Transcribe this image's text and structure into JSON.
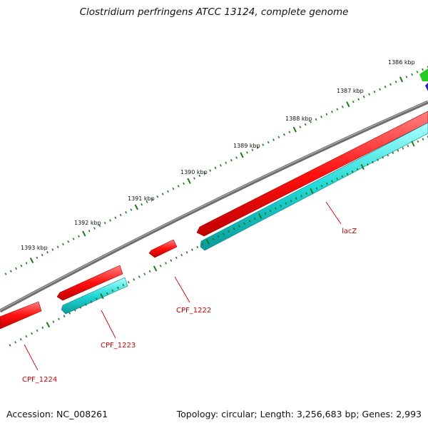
{
  "title": "Clostridium perfringens ATCC 13124, complete genome",
  "footer": {
    "accession": "Accession: NC_008261",
    "summary": "Topology: circular; Length: 3,256,683 bp; Genes: 2,993"
  },
  "ruler": {
    "ticks": [
      "1386 kbp",
      "1387 kbp",
      "1388 kbp",
      "1389 kbp",
      "1390 kbp",
      "1391 kbp",
      "1392 kbp",
      "1393 kbp"
    ]
  },
  "genes": [
    {
      "label": "lacZ",
      "color": "#e00000"
    },
    {
      "label": "CPF_1222",
      "color": "#e00000"
    },
    {
      "label": "CPF_1223",
      "color": "#e00000"
    },
    {
      "label": "CPF_1224",
      "color": "#e00000"
    }
  ],
  "colors": {
    "backbone": "#808080",
    "gene_red": "#ff1a1a",
    "gene_cyan": "#1adede",
    "gene_green": "#22cc22",
    "gene_blue": "#1f1fcc",
    "ruler": "#1a7a1a",
    "label": "#cc0000"
  }
}
